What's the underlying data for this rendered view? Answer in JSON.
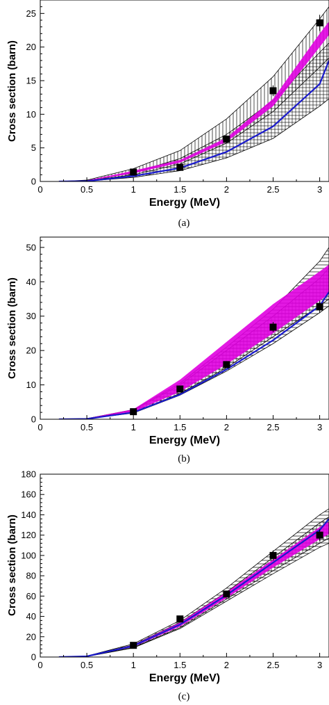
{
  "chart_data": [
    {
      "type": "line",
      "caption": "(a)",
      "xlabel": "Energy (MeV)",
      "ylabel": "Cross section (barn)",
      "xlim": [
        0,
        3.1
      ],
      "ylim": [
        0,
        27
      ],
      "xticks": [
        "0",
        "0.5",
        "1",
        "1.5",
        "2",
        "2.5",
        "3"
      ],
      "xtick_values": [
        0,
        0.5,
        1,
        1.5,
        2,
        2.5,
        3
      ],
      "yticks": [
        "0",
        "5",
        "10",
        "15",
        "20",
        "25"
      ],
      "ytick_values": [
        0,
        5,
        10,
        15,
        20,
        25
      ],
      "grid": false,
      "x": [
        0.2,
        0.5,
        1.0,
        1.5,
        2.0,
        2.5,
        3.0,
        3.1
      ],
      "series": [
        {
          "kind": "band",
          "pattern": "hatch-vertical",
          "color": "#000000",
          "lower": [
            0,
            0.1,
            1.0,
            2.6,
            5.7,
            10.4,
            17.0,
            18.4
          ],
          "upper": [
            0,
            0.2,
            1.9,
            4.6,
            9.3,
            15.6,
            24.2,
            26.0
          ]
        },
        {
          "kind": "band",
          "pattern": "hatch-grid",
          "color": "#000000",
          "lower": [
            0,
            0.05,
            0.6,
            1.6,
            3.5,
            6.4,
            11.2,
            12.3
          ],
          "upper": [
            0,
            0.15,
            1.3,
            3.4,
            7.0,
            12.0,
            19.2,
            20.6
          ]
        },
        {
          "kind": "band",
          "pattern": "solid",
          "color": "#e000e0",
          "lower": [
            0,
            0.1,
            1.2,
            2.8,
            5.9,
            11.2,
            20.0,
            21.8
          ],
          "upper": [
            0,
            0.15,
            1.6,
            3.2,
            6.5,
            12.3,
            22.0,
            23.8
          ]
        },
        {
          "kind": "line",
          "color": "#1a1acd",
          "values": [
            0,
            0.05,
            0.8,
            2.0,
            4.4,
            8.2,
            14.5,
            18.0
          ]
        },
        {
          "kind": "points",
          "x": [
            1.0,
            1.5,
            2.0,
            2.5,
            3.0
          ],
          "values": [
            1.4,
            2.1,
            6.3,
            13.5,
            23.6
          ],
          "errors": [
            0.3,
            0.4,
            0.5,
            0.8,
            1.2
          ]
        }
      ]
    },
    {
      "type": "line",
      "caption": "(b)",
      "xlabel": "Energy (MeV)",
      "ylabel": "Cross section (barn)",
      "xlim": [
        0,
        3.1
      ],
      "ylim": [
        0,
        53
      ],
      "xticks": [
        "0",
        "0.5",
        "1",
        "1.5",
        "2",
        "2.5",
        "3"
      ],
      "xtick_values": [
        0,
        0.5,
        1,
        1.5,
        2,
        2.5,
        3
      ],
      "yticks": [
        "0",
        "10",
        "20",
        "30",
        "40",
        "50"
      ],
      "ytick_values": [
        0,
        10,
        20,
        30,
        40,
        50
      ],
      "grid": false,
      "x": [
        0.2,
        0.5,
        1.0,
        1.5,
        2.0,
        2.5,
        3.0,
        3.1
      ],
      "series": [
        {
          "kind": "band",
          "pattern": "hatch-horizontal",
          "color": "#000000",
          "lower": [
            0,
            0.1,
            1.8,
            7.0,
            14.0,
            22.0,
            31.0,
            33.0
          ],
          "upper": [
            0,
            0.2,
            2.8,
            10.5,
            21.0,
            32.0,
            46.0,
            50.0
          ]
        },
        {
          "kind": "band",
          "pattern": "hatch-grid",
          "color": "#000000",
          "lower": [
            0,
            0.1,
            2.0,
            7.5,
            15.0,
            24.0,
            33.0,
            35.0
          ],
          "upper": [
            0,
            0.2,
            2.6,
            10.0,
            20.0,
            30.0,
            41.0,
            44.0
          ]
        },
        {
          "kind": "band",
          "pattern": "solid",
          "color": "#e000e0",
          "lower": [
            0,
            0.1,
            2.1,
            8.0,
            16.0,
            25.0,
            34.5,
            36.5
          ],
          "upper": [
            0,
            0.25,
            2.9,
            11.5,
            22.5,
            33.5,
            43.0,
            45.0
          ]
        },
        {
          "kind": "line",
          "color": "#1a1acd",
          "values": [
            0,
            0.1,
            2.0,
            7.2,
            14.5,
            23.0,
            33.0,
            37.0
          ]
        },
        {
          "kind": "points",
          "x": [
            1.0,
            1.5,
            2.0,
            2.5,
            3.0
          ],
          "values": [
            2.2,
            8.8,
            15.9,
            26.8,
            32.7
          ],
          "errors": [
            0.4,
            0.8,
            1.0,
            1.5,
            1.8
          ]
        }
      ]
    },
    {
      "type": "line",
      "caption": "(c)",
      "xlabel": "Energy (MeV)",
      "ylabel": "Cross section (barn)",
      "xlim": [
        0,
        3.1
      ],
      "ylim": [
        0,
        180
      ],
      "xticks": [
        "0",
        "0.5",
        "1",
        "1.5",
        "2",
        "2.5",
        "3"
      ],
      "xtick_values": [
        0,
        0.5,
        1,
        1.5,
        2,
        2.5,
        3
      ],
      "yticks": [
        "0",
        "20",
        "40",
        "60",
        "80",
        "100",
        "120",
        "140",
        "160",
        "180"
      ],
      "ytick_values": [
        0,
        20,
        40,
        60,
        80,
        100,
        120,
        140,
        160,
        180
      ],
      "grid": false,
      "x": [
        0.2,
        0.5,
        1.0,
        1.5,
        2.0,
        2.5,
        3.0,
        3.1
      ],
      "series": [
        {
          "kind": "band",
          "pattern": "hatch-horizontal",
          "color": "#000000",
          "lower": [
            0,
            0.5,
            9.0,
            28.0,
            55.0,
            82.0,
            108.0,
            112.0
          ],
          "upper": [
            0,
            1.0,
            13.0,
            36.0,
            68.0,
            104.0,
            140.0,
            146.0
          ]
        },
        {
          "kind": "band",
          "pattern": "hatch-grid",
          "color": "#000000",
          "lower": [
            0,
            0.5,
            9.5,
            29.0,
            57.0,
            85.0,
            112.0,
            117.0
          ],
          "upper": [
            0,
            0.9,
            12.0,
            34.0,
            64.0,
            98.0,
            132.0,
            138.0
          ]
        },
        {
          "kind": "band",
          "pattern": "solid",
          "color": "#e000e0",
          "lower": [
            0,
            0.6,
            10.0,
            30.0,
            58.0,
            88.0,
            116.0,
            121.0
          ],
          "upper": [
            0,
            0.9,
            12.0,
            34.0,
            64.0,
            96.0,
            128.0,
            133.0
          ]
        },
        {
          "kind": "line",
          "color": "#1a1acd",
          "values": [
            0,
            0.7,
            11.0,
            32.0,
            61.0,
            93.0,
            125.0,
            136.0
          ]
        },
        {
          "kind": "points",
          "x": [
            1.0,
            1.5,
            2.0,
            2.5,
            3.0
          ],
          "values": [
            11.5,
            37.5,
            62.0,
            100.0,
            120.0
          ],
          "errors": [
            1.5,
            3.0,
            3.0,
            5.0,
            6.0
          ]
        }
      ]
    }
  ]
}
